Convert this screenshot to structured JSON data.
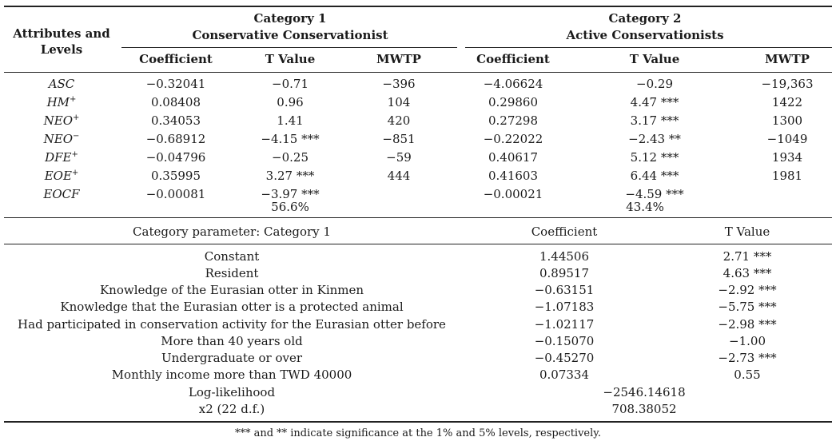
{
  "header": {
    "attributes_label": "Attributes and Levels",
    "cat1_line1": "Category 1",
    "cat1_line2": "Conservative Conservationist",
    "cat2_line1": "Category 2",
    "cat2_line2": "Active Conservationists",
    "sub": [
      "Coefficient",
      "T Value",
      "MWTP",
      "Coefficient",
      "T Value",
      "MWTP"
    ]
  },
  "attributes": [
    {
      "name": "ASC",
      "sup": "",
      "c1_coef": "−0.32041",
      "c1_t": "−0.71",
      "c1_mwtp": "−396",
      "c2_coef": "−4.06624",
      "c2_t": "−0.29",
      "c2_mwtp": "−19,363"
    },
    {
      "name": "HM",
      "sup": "+",
      "c1_coef": "0.08408",
      "c1_t": "0.96",
      "c1_mwtp": "104",
      "c2_coef": "0.29860",
      "c2_t": "4.47 ***",
      "c2_mwtp": "1422"
    },
    {
      "name": "NEO",
      "sup": "+",
      "c1_coef": "0.34053",
      "c1_t": "1.41",
      "c1_mwtp": "420",
      "c2_coef": "0.27298",
      "c2_t": "3.17 ***",
      "c2_mwtp": "1300"
    },
    {
      "name": "NEO",
      "sup": "−",
      "c1_coef": "−0.68912",
      "c1_t": "−4.15 ***",
      "c1_mwtp": "−851",
      "c2_coef": "−0.22022",
      "c2_t": "−2.43 **",
      "c2_mwtp": "−1049"
    },
    {
      "name": "DFE",
      "sup": "+",
      "c1_coef": "−0.04796",
      "c1_t": "−0.25",
      "c1_mwtp": "−59",
      "c2_coef": "0.40617",
      "c2_t": "5.12 ***",
      "c2_mwtp": "1934"
    },
    {
      "name": "EOE",
      "sup": "+",
      "c1_coef": "0.35995",
      "c1_t": "3.27 ***",
      "c1_mwtp": "444",
      "c2_coef": "0.41603",
      "c2_t": "6.44 ***",
      "c2_mwtp": "1981"
    },
    {
      "name": "EOCF",
      "sup": "",
      "c1_coef": "−0.00081",
      "c1_t": "−3.97 ***",
      "c1_mwtp": "",
      "c2_coef": "−0.00021",
      "c2_t": "−4.59 ***",
      "c2_mwtp": ""
    }
  ],
  "shares": {
    "c1": "56.6%",
    "c2": "43.4%"
  },
  "param_header": {
    "label": "Category parameter: Category 1",
    "coef": "Coefficient",
    "t": "T Value"
  },
  "params": [
    {
      "label": "Constant",
      "coef": "1.44506",
      "t": "2.71 ***"
    },
    {
      "label": "Resident",
      "coef": "0.89517",
      "t": "4.63 ***"
    },
    {
      "label": "Knowledge of the Eurasian otter in Kinmen",
      "coef": "−0.63151",
      "t": "−2.92 ***"
    },
    {
      "label": "Knowledge that the Eurasian otter is a protected animal",
      "coef": "−1.07183",
      "t": "−5.75 ***"
    },
    {
      "label": "Had participated in conservation activity for the Eurasian otter before",
      "coef": "−1.02117",
      "t": "−2.98 ***"
    },
    {
      "label": "More than 40 years old",
      "coef": "−0.15070",
      "t": "−1.00"
    },
    {
      "label": "Undergraduate or over",
      "coef": "−0.45270",
      "t": "−2.73 ***"
    },
    {
      "label": "Monthly income more than TWD 40000",
      "coef": "0.07334",
      "t": "0.55"
    }
  ],
  "fit": [
    {
      "label": "Log-likelihood",
      "value": "−2546.14618"
    },
    {
      "label": "x2 (22 d.f.)",
      "value": "708.38052"
    }
  ],
  "note": "*** and ** indicate significance at the 1% and 5% levels, respectively."
}
